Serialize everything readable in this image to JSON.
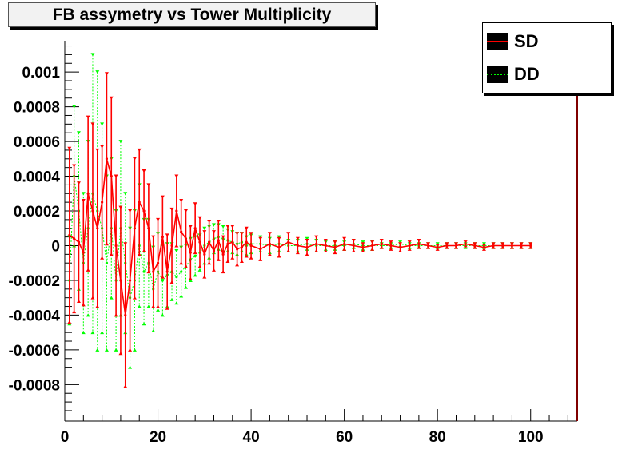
{
  "title": "FB assymetry vs Tower Multiplicity",
  "colors": {
    "SD": "#ff0000",
    "DD": "#00ff00",
    "frame": "#000000",
    "right_axis": "#800000"
  },
  "legend": [
    {
      "label": "SD",
      "line_style": "solid",
      "color": "#ff0000"
    },
    {
      "label": "DD",
      "line_style": "dotted",
      "color": "#00ff00"
    }
  ],
  "chart_data": {
    "type": "line",
    "title": "FB assymetry vs Tower Multiplicity",
    "xlabel": "",
    "ylabel": "",
    "xlim": [
      0,
      110
    ],
    "ylim": [
      -0.00101,
      0.00118
    ],
    "x_ticks": [
      0,
      20,
      40,
      60,
      80,
      100
    ],
    "x_tick_labels": [
      "0",
      "20",
      "40",
      "60",
      "80",
      "100"
    ],
    "y_ticks": [
      -0.0008,
      -0.0006,
      -0.0004,
      -0.0002,
      0,
      0.0002,
      0.0004,
      0.0006,
      0.0008,
      0.001
    ],
    "y_tick_labels": [
      "-0.0008",
      "-0.0006",
      "-0.0004",
      "-0.0002",
      "0",
      "0.0002",
      "0.0004",
      "0.0006",
      "0.0008",
      "0.001"
    ],
    "grid": false,
    "legend_position": "top-right",
    "series": [
      {
        "name": "SD",
        "line_style": "solid",
        "points": [
          {
            "x": 1,
            "y": 6e-05,
            "err": 0.0005
          },
          {
            "x": 2,
            "y": 4e-05,
            "err": 0.00042
          },
          {
            "x": 3,
            "y": 2e-05,
            "err": 0.00034
          },
          {
            "x": 4,
            "y": -4e-05,
            "err": 0.0003
          },
          {
            "x": 5,
            "y": 0.0003,
            "err": 0.00044
          },
          {
            "x": 6,
            "y": 0.0002,
            "err": 0.0005
          },
          {
            "x": 7,
            "y": 0.0001,
            "err": 0.00045
          },
          {
            "x": 8,
            "y": 0.00025,
            "err": 0.00032
          },
          {
            "x": 9,
            "y": 0.0005,
            "err": 0.00049
          },
          {
            "x": 10,
            "y": 0.0004,
            "err": 0.00045
          },
          {
            "x": 11,
            "y": 0.0,
            "err": 0.0004
          },
          {
            "x": 12,
            "y": -0.0002,
            "err": 0.00042
          },
          {
            "x": 13,
            "y": -0.0004,
            "err": 0.00041
          },
          {
            "x": 14,
            "y": -0.0002,
            "err": 0.0004
          },
          {
            "x": 15,
            "y": 0.0001,
            "err": 0.0004
          },
          {
            "x": 16,
            "y": 0.00025,
            "err": 0.0003
          },
          {
            "x": 17,
            "y": 0.0002,
            "err": 0.00023
          },
          {
            "x": 18,
            "y": 0.0001,
            "err": 0.00025
          },
          {
            "x": 19,
            "y": -0.00015,
            "err": 0.0002
          },
          {
            "x": 20,
            "y": -0.0001,
            "err": 0.00025
          },
          {
            "x": 21,
            "y": 5e-05,
            "err": 0.00023
          },
          {
            "x": 22,
            "y": -0.00015,
            "err": 0.00021
          },
          {
            "x": 23,
            "y": 0.0,
            "err": 0.00021
          },
          {
            "x": 24,
            "y": 0.0002,
            "err": 0.0002
          },
          {
            "x": 25,
            "y": 8e-05,
            "err": 0.00018
          },
          {
            "x": 26,
            "y": 4e-05,
            "err": 0.00016
          },
          {
            "x": 27,
            "y": -4e-05,
            "err": 0.00015
          },
          {
            "x": 28,
            "y": 0.0001,
            "err": 0.00014
          },
          {
            "x": 29,
            "y": 2e-05,
            "err": 0.00014
          },
          {
            "x": 30,
            "y": -5e-05,
            "err": 0.00013
          },
          {
            "x": 31,
            "y": 2e-05,
            "err": 0.00012
          },
          {
            "x": 32,
            "y": -3e-05,
            "err": 0.00011
          },
          {
            "x": 33,
            "y": 3e-05,
            "err": 0.00011
          },
          {
            "x": 34,
            "y": -5e-05,
            "err": 0.0001
          },
          {
            "x": 35,
            "y": 1e-05,
            "err": 0.0001
          },
          {
            "x": 36,
            "y": 2e-05,
            "err": 9e-05
          },
          {
            "x": 37,
            "y": -2e-05,
            "err": 9e-05
          },
          {
            "x": 38,
            "y": -1e-05,
            "err": 8e-05
          },
          {
            "x": 39,
            "y": 2e-05,
            "err": 8e-05
          },
          {
            "x": 40,
            "y": 0.0,
            "err": 7e-05
          },
          {
            "x": 42,
            "y": -2e-05,
            "err": 6e-05
          },
          {
            "x": 44,
            "y": 1e-05,
            "err": 6e-05
          },
          {
            "x": 46,
            "y": -1e-05,
            "err": 5e-05
          },
          {
            "x": 48,
            "y": 2e-05,
            "err": 5e-05
          },
          {
            "x": 50,
            "y": 0.0,
            "err": 4e-05
          },
          {
            "x": 52,
            "y": -1e-05,
            "err": 4e-05
          },
          {
            "x": 54,
            "y": 1e-05,
            "err": 4e-05
          },
          {
            "x": 56,
            "y": 0.0,
            "err": 3e-05
          },
          {
            "x": 58,
            "y": -1e-05,
            "err": 3e-05
          },
          {
            "x": 60,
            "y": 1e-05,
            "err": 3e-05
          },
          {
            "x": 62,
            "y": 0.0,
            "err": 3e-05
          },
          {
            "x": 64,
            "y": -1e-05,
            "err": 2e-05
          },
          {
            "x": 66,
            "y": 0.0,
            "err": 2e-05
          },
          {
            "x": 68,
            "y": 1e-05,
            "err": 2e-05
          },
          {
            "x": 70,
            "y": 0.0,
            "err": 2e-05
          },
          {
            "x": 72,
            "y": -1e-05,
            "err": 2e-05
          },
          {
            "x": 74,
            "y": 0.0,
            "err": 2e-05
          },
          {
            "x": 76,
            "y": 1e-05,
            "err": 2e-05
          },
          {
            "x": 78,
            "y": 0.0,
            "err": 1e-05
          },
          {
            "x": 80,
            "y": -1e-05,
            "err": 1e-05
          },
          {
            "x": 82,
            "y": 0.0,
            "err": 1e-05
          },
          {
            "x": 84,
            "y": 0.0,
            "err": 1e-05
          },
          {
            "x": 86,
            "y": 1e-05,
            "err": 1e-05
          },
          {
            "x": 88,
            "y": 0.0,
            "err": 1e-05
          },
          {
            "x": 90,
            "y": -1e-05,
            "err": 1e-05
          },
          {
            "x": 92,
            "y": 0.0,
            "err": 1e-05
          },
          {
            "x": 94,
            "y": 0.0,
            "err": 1e-05
          },
          {
            "x": 96,
            "y": 0.0,
            "err": 1e-05
          },
          {
            "x": 98,
            "y": 0.0,
            "err": 1e-05
          },
          {
            "x": 100,
            "y": 0.0,
            "err": 1e-05
          }
        ]
      },
      {
        "name": "DD",
        "line_style": "dotted",
        "points": [
          {
            "x": 1,
            "y": -0.0002,
            "err": 0.00025
          },
          {
            "x": 2,
            "y": 0.0004,
            "err": 0.0004
          },
          {
            "x": 3,
            "y": 0.0002,
            "err": 0.00045
          },
          {
            "x": 4,
            "y": -0.0001,
            "err": 0.0004
          },
          {
            "x": 5,
            "y": 0.0001,
            "err": 0.0005
          },
          {
            "x": 6,
            "y": 0.0003,
            "err": 0.0008
          },
          {
            "x": 7,
            "y": 0.0002,
            "err": 0.0008
          },
          {
            "x": 8,
            "y": 0.0001,
            "err": 0.0006
          },
          {
            "x": 9,
            "y": -0.0001,
            "err": 0.0005
          },
          {
            "x": 10,
            "y": 0.0001,
            "err": 0.0004
          },
          {
            "x": 11,
            "y": -0.0002,
            "err": 0.0004
          },
          {
            "x": 12,
            "y": 0.0001,
            "err": 0.0005
          },
          {
            "x": 13,
            "y": -0.0001,
            "err": 0.0004
          },
          {
            "x": 14,
            "y": -0.0003,
            "err": 0.0004
          },
          {
            "x": 15,
            "y": -0.0002,
            "err": 0.0004
          },
          {
            "x": 16,
            "y": 0.0,
            "err": 0.00035
          },
          {
            "x": 17,
            "y": -0.00015,
            "err": 0.0003
          },
          {
            "x": 18,
            "y": -0.0001,
            "err": 0.00025
          },
          {
            "x": 19,
            "y": -0.00025,
            "err": 0.00024
          },
          {
            "x": 20,
            "y": -0.00015,
            "err": 0.00022
          },
          {
            "x": 21,
            "y": -0.0002,
            "err": 0.0002
          },
          {
            "x": 22,
            "y": -0.00017,
            "err": 0.00018
          },
          {
            "x": 23,
            "y": -0.00015,
            "err": 0.00016
          },
          {
            "x": 24,
            "y": -0.00018,
            "err": 0.00015
          },
          {
            "x": 25,
            "y": -0.00015,
            "err": 0.00014
          },
          {
            "x": 26,
            "y": -0.00012,
            "err": 0.00012
          },
          {
            "x": 27,
            "y": -8e-05,
            "err": 0.00012
          },
          {
            "x": 28,
            "y": -6e-05,
            "err": 0.00011
          },
          {
            "x": 29,
            "y": -4e-05,
            "err": 0.0001
          },
          {
            "x": 30,
            "y": 0.0,
            "err": 0.0001
          },
          {
            "x": 31,
            "y": 2e-05,
            "err": 9e-05
          },
          {
            "x": 32,
            "y": 4e-05,
            "err": 8e-05
          },
          {
            "x": 33,
            "y": 5e-05,
            "err": 7e-05
          },
          {
            "x": 34,
            "y": 4e-05,
            "err": 7e-05
          },
          {
            "x": 35,
            "y": 3e-05,
            "err": 6e-05
          },
          {
            "x": 36,
            "y": 2e-05,
            "err": 6e-05
          },
          {
            "x": 37,
            "y": 1e-05,
            "err": 6e-05
          },
          {
            "x": 38,
            "y": 2e-05,
            "err": 5e-05
          },
          {
            "x": 39,
            "y": 0.0,
            "err": 5e-05
          },
          {
            "x": 40,
            "y": 1e-05,
            "err": 5e-05
          },
          {
            "x": 42,
            "y": 1e-05,
            "err": 4e-05
          },
          {
            "x": 44,
            "y": 0.0,
            "err": 4e-05
          },
          {
            "x": 46,
            "y": 1e-05,
            "err": 4e-05
          },
          {
            "x": 48,
            "y": 0.0,
            "err": 3e-05
          },
          {
            "x": 50,
            "y": 0.0,
            "err": 3e-05
          },
          {
            "x": 52,
            "y": 1e-05,
            "err": 3e-05
          },
          {
            "x": 54,
            "y": 0.0,
            "err": 3e-05
          },
          {
            "x": 56,
            "y": 0.0,
            "err": 2e-05
          },
          {
            "x": 58,
            "y": 0.0,
            "err": 2e-05
          },
          {
            "x": 60,
            "y": 0.0,
            "err": 2e-05
          },
          {
            "x": 62,
            "y": 1e-05,
            "err": 2e-05
          },
          {
            "x": 64,
            "y": 0.0,
            "err": 2e-05
          },
          {
            "x": 66,
            "y": 0.0,
            "err": 2e-05
          },
          {
            "x": 68,
            "y": 0.0,
            "err": 1e-05
          },
          {
            "x": 70,
            "y": 0.0,
            "err": 1e-05
          },
          {
            "x": 72,
            "y": 1e-05,
            "err": 1e-05
          },
          {
            "x": 74,
            "y": 0.0,
            "err": 1e-05
          },
          {
            "x": 76,
            "y": 0.0,
            "err": 1e-05
          },
          {
            "x": 78,
            "y": 0.0,
            "err": 1e-05
          },
          {
            "x": 80,
            "y": 0.0,
            "err": 1e-05
          },
          {
            "x": 82,
            "y": 0.0,
            "err": 1e-05
          },
          {
            "x": 84,
            "y": 0.0,
            "err": 1e-05
          },
          {
            "x": 86,
            "y": 0.0,
            "err": 1e-05
          },
          {
            "x": 88,
            "y": 0.0,
            "err": 1e-05
          },
          {
            "x": 90,
            "y": 0.0,
            "err": 1e-05
          },
          {
            "x": 92,
            "y": 0.0,
            "err": 1e-05
          },
          {
            "x": 94,
            "y": 0.0,
            "err": 1e-05
          },
          {
            "x": 96,
            "y": 0.0,
            "err": 1e-05
          },
          {
            "x": 98,
            "y": 0.0,
            "err": 1e-05
          },
          {
            "x": 100,
            "y": 0.0,
            "err": 1e-05
          }
        ]
      }
    ]
  }
}
